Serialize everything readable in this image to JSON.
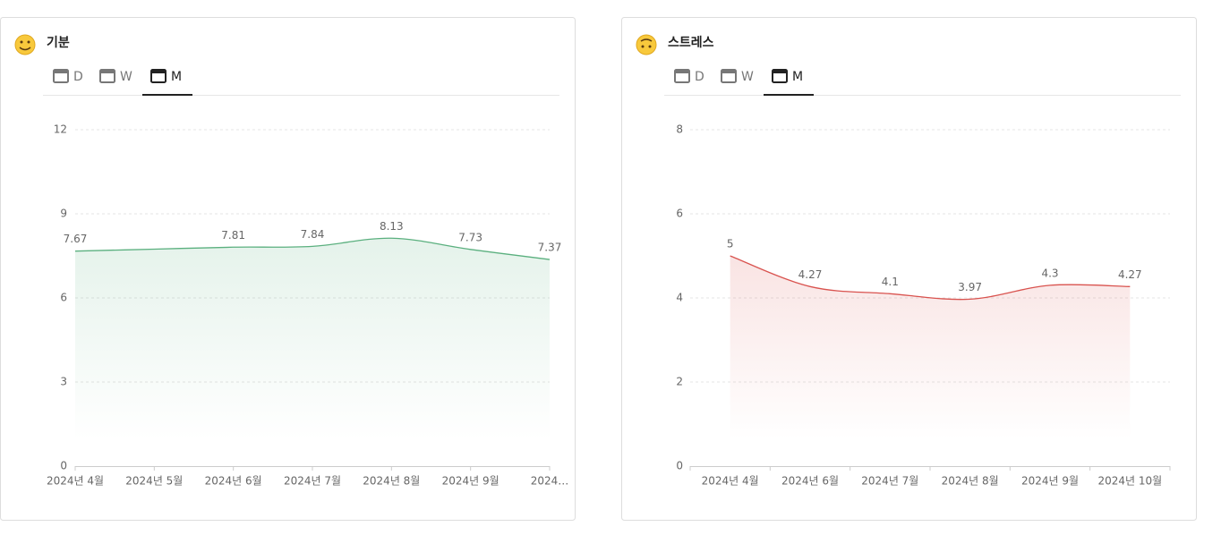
{
  "chart_data": [
    {
      "type": "line",
      "title": "기분",
      "tabs": [
        "D",
        "W",
        "M"
      ],
      "selected_tab": "M",
      "categories": [
        "2024년 4월",
        "2024년 5월",
        "2024년 6월",
        "2024년 7월",
        "2024년 8월",
        "2024년 9월",
        "2024…"
      ],
      "series": [
        {
          "name": "기분",
          "color": "#5bb07f",
          "values": [
            7.67,
            7.74,
            7.81,
            7.84,
            8.13,
            7.73,
            7.37
          ],
          "value_labels": [
            "7.67",
            null,
            "7.81",
            "7.84",
            "8.13",
            "7.73",
            "7.37"
          ]
        }
      ],
      "ylim": [
        0,
        12
      ],
      "yticks": [
        0,
        3,
        6,
        9,
        12
      ],
      "grid": true
    },
    {
      "type": "line",
      "title": "스트레스",
      "tabs": [
        "D",
        "W",
        "M"
      ],
      "selected_tab": "M",
      "categories": [
        "2024년 4월",
        "2024년 6월",
        "2024년 7월",
        "2024년 8월",
        "2024년 9월",
        "2024년 10월"
      ],
      "series": [
        {
          "name": "스트레스",
          "color": "#d9534f",
          "values": [
            5,
            4.27,
            4.1,
            3.97,
            4.3,
            4.27
          ],
          "value_labels": [
            "5",
            "4.27",
            "4.1",
            "3.97",
            "4.3",
            "4.27"
          ]
        }
      ],
      "ylim": [
        0,
        8
      ],
      "yticks": [
        0,
        2,
        4,
        6,
        8
      ],
      "grid": true
    }
  ]
}
